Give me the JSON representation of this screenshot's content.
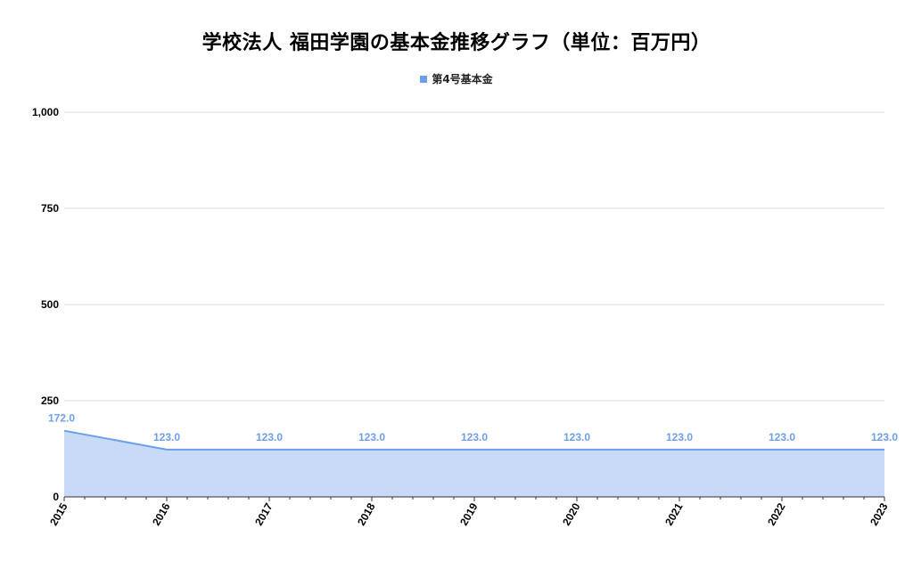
{
  "chart_data": {
    "type": "area",
    "title": "学校法人 福田学園の基本金推移グラフ（単位：百万円）",
    "xlabel": "",
    "ylabel": "",
    "categories": [
      "2015",
      "2016",
      "2017",
      "2018",
      "2019",
      "2020",
      "2021",
      "2022",
      "2023"
    ],
    "series": [
      {
        "name": "第4号基本金",
        "values": [
          172.0,
          123.0,
          123.0,
          123.0,
          123.0,
          123.0,
          123.0,
          123.0,
          123.0
        ],
        "data_labels": [
          "172.0",
          "123.0",
          "123.0",
          "123.0",
          "123.0",
          "123.0",
          "123.0",
          "123.0",
          "123.0"
        ]
      }
    ],
    "ylim": [
      0,
      1000
    ],
    "yticks": [
      0,
      250,
      500,
      750,
      1000
    ],
    "ytick_labels": [
      "0",
      "250",
      "500",
      "750",
      "1,000"
    ],
    "grid": true,
    "legend_position": "top-center",
    "colors": {
      "line": "#6d9eeb",
      "fill": "#c9daf8",
      "label": "#6d9eeb",
      "grid": "#dddddd",
      "axis": "#333333"
    }
  }
}
